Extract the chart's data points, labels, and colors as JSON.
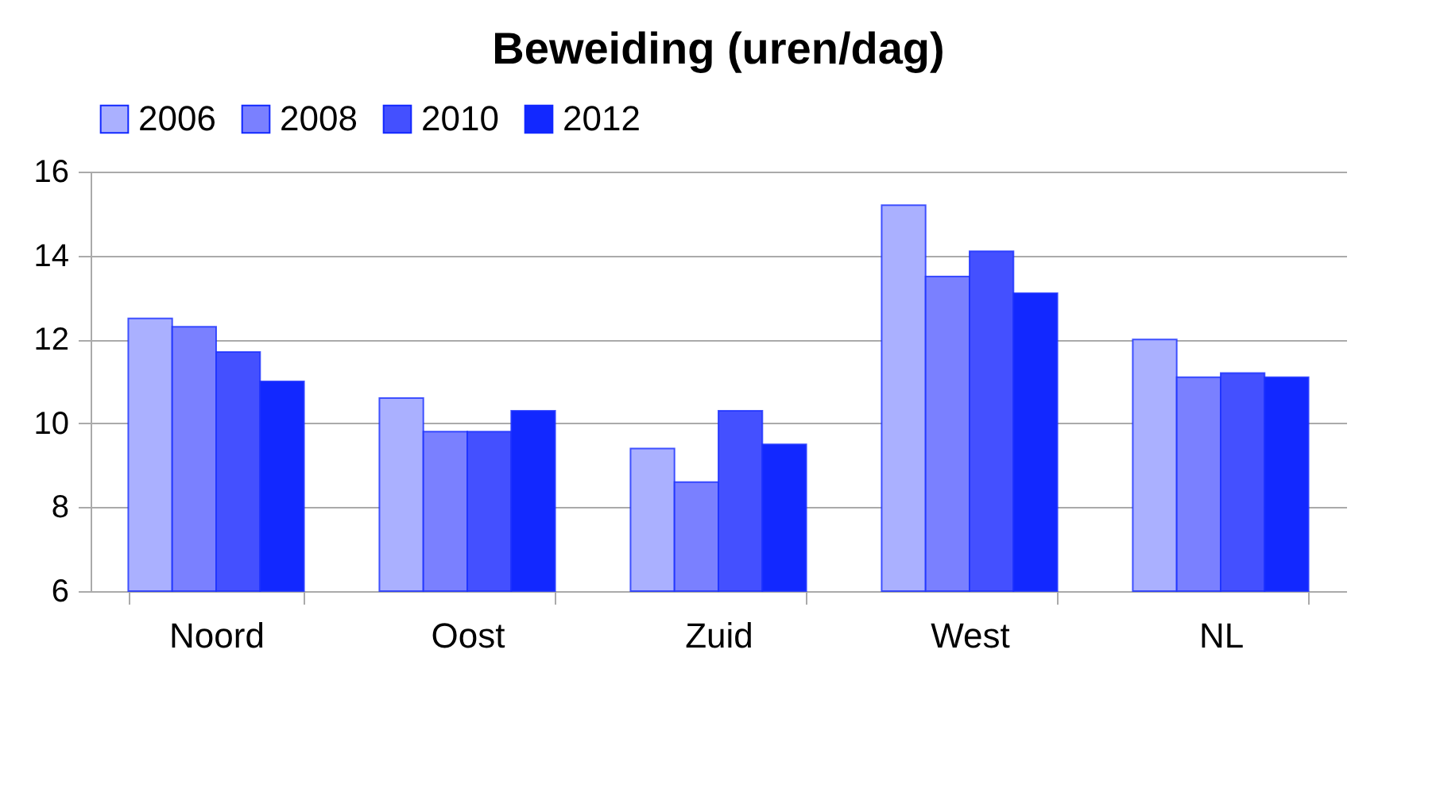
{
  "chart_data": {
    "type": "bar",
    "title": "Beweiding (uren/dag)",
    "categories": [
      "Noord",
      "Oost",
      "Zuid",
      "West",
      "NL"
    ],
    "series": [
      {
        "name": "2006",
        "color": "#aab0ff",
        "values": [
          12.5,
          10.6,
          9.4,
          15.2,
          12.0
        ]
      },
      {
        "name": "2008",
        "color": "#7a80ff",
        "values": [
          12.3,
          9.8,
          8.6,
          13.5,
          11.1
        ]
      },
      {
        "name": "2010",
        "color": "#4450ff",
        "values": [
          11.7,
          9.8,
          10.3,
          14.1,
          11.2
        ]
      },
      {
        "name": "2012",
        "color": "#1228ff",
        "values": [
          11.0,
          10.3,
          9.5,
          13.1,
          11.1
        ]
      }
    ],
    "ylim": [
      6,
      16
    ],
    "yticks": [
      6,
      8,
      10,
      12,
      14,
      16
    ],
    "grid": "y",
    "legend": "top"
  }
}
